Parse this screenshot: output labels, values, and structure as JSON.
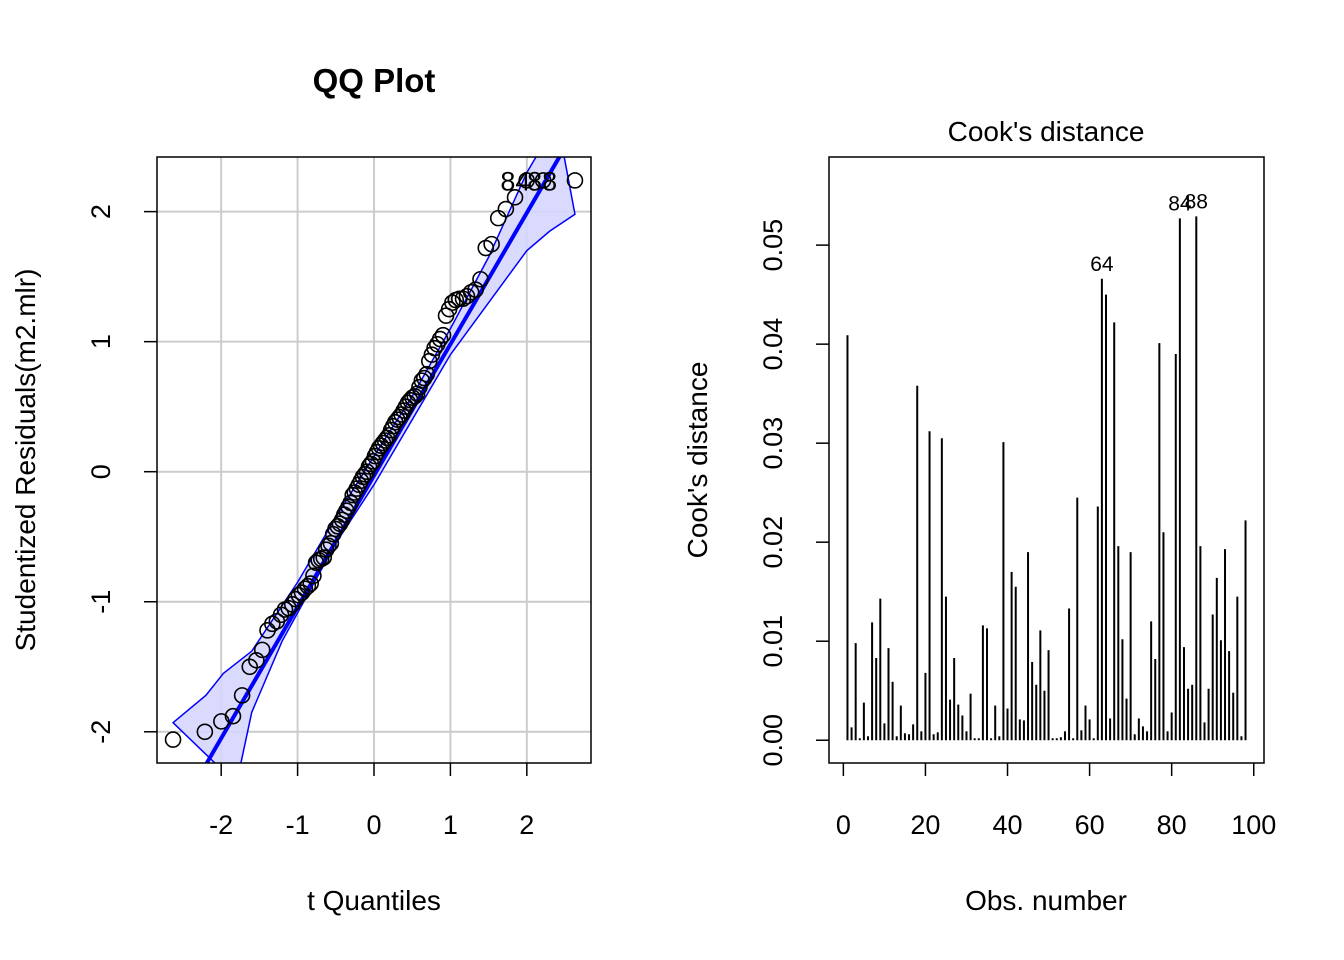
{
  "chart_data": [
    {
      "type": "scatter",
      "title": "QQ Plot",
      "xlabel": "t Quantiles",
      "ylabel": "Studentized Residuals(m2.mlr)",
      "xlim": [
        -2.84,
        2.84
      ],
      "ylim": [
        -2.24,
        2.42
      ],
      "xticks": [
        "-2",
        "-1",
        "0",
        "1",
        "2"
      ],
      "yticks": [
        "-2",
        "-1",
        "0",
        "1",
        "2"
      ],
      "grid": true,
      "x_distribution": "t quantiles (n = 98)",
      "y": [
        -2.06,
        -2.0,
        -1.92,
        -1.88,
        -1.72,
        -1.5,
        -1.45,
        -1.37,
        -1.22,
        -1.17,
        -1.15,
        -1.1,
        -1.06,
        -1.05,
        -1.02,
        -0.98,
        -0.95,
        -0.93,
        -0.9,
        -0.88,
        -0.86,
        -0.8,
        -0.7,
        -0.68,
        -0.67,
        -0.66,
        -0.6,
        -0.57,
        -0.55,
        -0.48,
        -0.44,
        -0.42,
        -0.4,
        -0.37,
        -0.33,
        -0.3,
        -0.27,
        -0.24,
        -0.18,
        -0.16,
        -0.13,
        -0.1,
        -0.07,
        -0.04,
        -0.02,
        0.0,
        0.04,
        0.06,
        0.08,
        0.12,
        0.15,
        0.18,
        0.2,
        0.22,
        0.24,
        0.26,
        0.28,
        0.32,
        0.35,
        0.38,
        0.4,
        0.42,
        0.44,
        0.47,
        0.5,
        0.53,
        0.55,
        0.57,
        0.58,
        0.6,
        0.65,
        0.7,
        0.72,
        0.75,
        0.85,
        0.9,
        0.95,
        0.98,
        1.02,
        1.05,
        1.2,
        1.25,
        1.3,
        1.32,
        1.33,
        1.33,
        1.35,
        1.38,
        1.4,
        1.48,
        1.72,
        1.75,
        1.95,
        2.02,
        2.11,
        2.24,
        2.24,
        2.24
      ],
      "reference_line": {
        "slope": 1.01,
        "intercept": -0.03,
        "color": "#0000ff"
      },
      "envelope": {
        "upper": [
          [
            -2.63,
            -1.93
          ],
          [
            -2.2,
            -1.72
          ],
          [
            -1.97,
            -1.55
          ],
          [
            -1.6,
            -1.38
          ],
          [
            -1.0,
            -0.85
          ],
          [
            -0.5,
            -0.35
          ],
          [
            0,
            0.12
          ],
          [
            0.5,
            0.58
          ],
          [
            1.0,
            1.1
          ],
          [
            1.5,
            1.65
          ],
          [
            2.0,
            2.3
          ],
          [
            2.4,
            2.7
          ]
        ],
        "lower": [
          [
            -1.8,
            -2.4
          ],
          [
            -1.6,
            -1.85
          ],
          [
            -1.2,
            -1.3
          ],
          [
            -0.5,
            -0.55
          ],
          [
            0,
            -0.1
          ],
          [
            0.5,
            0.4
          ],
          [
            1.0,
            0.9
          ],
          [
            1.5,
            1.3
          ],
          [
            2.0,
            1.7
          ],
          [
            2.3,
            1.85
          ],
          [
            2.63,
            1.98
          ]
        ],
        "fill": "#d6d6ff",
        "stroke": "#0000ff"
      },
      "point_labels": [
        {
          "text": "84",
          "x": 1.85,
          "y": 2.24
        },
        {
          "text": "88",
          "x": 2.2,
          "y": 2.24
        }
      ]
    },
    {
      "type": "bar",
      "title": "Cook's distance",
      "xlabel": "Obs. number",
      "ylabel": "Cook's distance",
      "xlim": [
        -3.5,
        102.5
      ],
      "ylim": [
        -0.0023,
        0.0589
      ],
      "xticks": [
        "0",
        "20",
        "40",
        "60",
        "80",
        "100"
      ],
      "yticks": [
        "0.00",
        "0.01",
        "0.02",
        "0.03",
        "0.04",
        "0.05"
      ],
      "values": [
        0.0409,
        0.0013,
        0.0098,
        0.0002,
        0.0038,
        0.0004,
        0.0119,
        0.0083,
        0.0143,
        0.0017,
        0.0093,
        0.0059,
        0.0004,
        0.0035,
        0.0007,
        0.0006,
        0.0016,
        0.0358,
        0.0009,
        0.0068,
        0.0312,
        0.0006,
        0.0008,
        0.0305,
        0.0145,
        0.0041,
        0.0083,
        0.0036,
        0.0025,
        0.0009,
        0.0047,
        0.0002,
        0.0002,
        0.0116,
        0.0113,
        0.0002,
        0.0035,
        0.0004,
        0.0301,
        0.0032,
        0.017,
        0.0155,
        0.0021,
        0.002,
        0.019,
        0.0079,
        0.0056,
        0.0111,
        0.005,
        0.0091,
        0.0002,
        0.0002,
        0.0003,
        0.0009,
        0.0133,
        0.0002,
        0.0245,
        0.001,
        0.0035,
        0.0021,
        0.0002,
        0.0236,
        0.0466,
        0.045,
        0.0022,
        0.0422,
        0.0196,
        0.0102,
        0.0042,
        0.019,
        0.0006,
        0.0022,
        0.0014,
        0.0009,
        0.012,
        0.0082,
        0.0401,
        0.021,
        0.0009,
        0.0028,
        0.039,
        0.0527,
        0.0094,
        0.0052,
        0.0056,
        0.0529,
        0.0196,
        0.0018,
        0.0052,
        0.0127,
        0.0164,
        0.0101,
        0.0193,
        0.009,
        0.0048,
        0.0145,
        0.0004,
        0.0222
      ],
      "bar_labels": [
        {
          "text": "64",
          "index": 63
        },
        {
          "text": "84",
          "index": 82
        },
        {
          "text": "88",
          "index": 86
        }
      ]
    }
  ]
}
